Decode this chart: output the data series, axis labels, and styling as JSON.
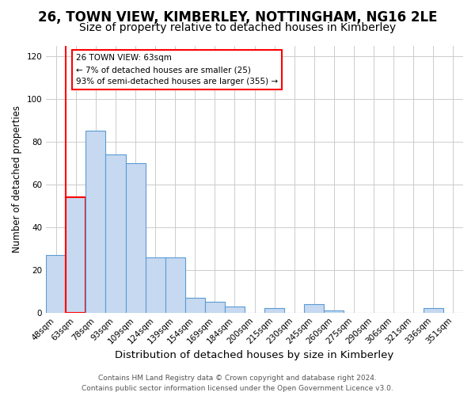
{
  "title": "26, TOWN VIEW, KIMBERLEY, NOTTINGHAM, NG16 2LE",
  "subtitle": "Size of property relative to detached houses in Kimberley",
  "xlabel": "Distribution of detached houses by size in Kimberley",
  "ylabel": "Number of detached properties",
  "bar_labels": [
    "48sqm",
    "63sqm",
    "78sqm",
    "93sqm",
    "109sqm",
    "124sqm",
    "139sqm",
    "154sqm",
    "169sqm",
    "184sqm",
    "200sqm",
    "215sqm",
    "230sqm",
    "245sqm",
    "260sqm",
    "275sqm",
    "290sqm",
    "306sqm",
    "321sqm",
    "336sqm",
    "351sqm"
  ],
  "bar_values": [
    27,
    54,
    85,
    74,
    70,
    26,
    26,
    7,
    5,
    3,
    0,
    2,
    0,
    4,
    1,
    0,
    0,
    0,
    0,
    2,
    0
  ],
  "bar_color": "#c6d9f0",
  "bar_edge_color": "#5b9bd5",
  "highlight_bar_index": 1,
  "highlight_bar_edge_color": "#ff0000",
  "highlight_line_color": "#ff0000",
  "ylim": [
    0,
    125
  ],
  "yticks": [
    0,
    20,
    40,
    60,
    80,
    100,
    120
  ],
  "grid_color": "#cccccc",
  "annotation_text": "26 TOWN VIEW: 63sqm\n← 7% of detached houses are smaller (25)\n93% of semi-detached houses are larger (355) →",
  "annotation_box_color": "#ffffff",
  "annotation_box_edge_color": "#ff0000",
  "footer_line1": "Contains HM Land Registry data © Crown copyright and database right 2024.",
  "footer_line2": "Contains public sector information licensed under the Open Government Licence v3.0.",
  "title_fontsize": 12,
  "subtitle_fontsize": 10,
  "xlabel_fontsize": 9.5,
  "ylabel_fontsize": 8.5,
  "tick_fontsize": 7.5,
  "footer_fontsize": 6.5
}
